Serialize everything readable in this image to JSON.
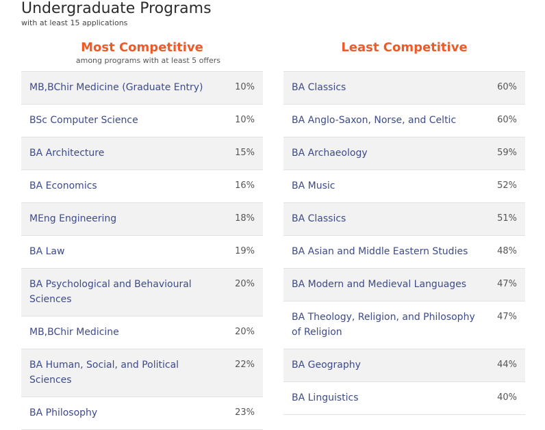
{
  "page": {
    "title": "Undergraduate Programs",
    "subtitle": "with at least 15 applications"
  },
  "most": {
    "heading": "Most Competitive",
    "note": "among programs with at least 5 offers",
    "rows": [
      {
        "program": "MB,BChir Medicine (Graduate Entry)",
        "rate": "10%"
      },
      {
        "program": "BSc Computer Science",
        "rate": "10%"
      },
      {
        "program": "BA Architecture",
        "rate": "15%"
      },
      {
        "program": "BA Economics",
        "rate": "16%"
      },
      {
        "program": "MEng Engineering",
        "rate": "18%"
      },
      {
        "program": "BA Law",
        "rate": "19%"
      },
      {
        "program": "BA Psychological and Behavioural Sciences",
        "rate": "20%"
      },
      {
        "program": "MB,BChir Medicine",
        "rate": "20%"
      },
      {
        "program": "BA Human, Social, and Political Sciences",
        "rate": "22%"
      },
      {
        "program": "BA Philosophy",
        "rate": "23%"
      }
    ]
  },
  "least": {
    "heading": "Least Competitive",
    "rows": [
      {
        "program": "BA Classics",
        "rate": "60%"
      },
      {
        "program": "BA Anglo-Saxon, Norse, and Celtic",
        "rate": "60%"
      },
      {
        "program": "BA Archaeology",
        "rate": "59%"
      },
      {
        "program": "BA Music",
        "rate": "52%"
      },
      {
        "program": "BA Classics",
        "rate": "51%"
      },
      {
        "program": "BA Asian and Middle Eastern Studies",
        "rate": "48%"
      },
      {
        "program": "BA Modern and Medieval Languages",
        "rate": "47%"
      },
      {
        "program": "BA Theology, Religion, and Philosophy of Religion",
        "rate": "47%"
      },
      {
        "program": "BA Geography",
        "rate": "44%"
      },
      {
        "program": "BA Linguistics",
        "rate": "40%"
      }
    ]
  }
}
